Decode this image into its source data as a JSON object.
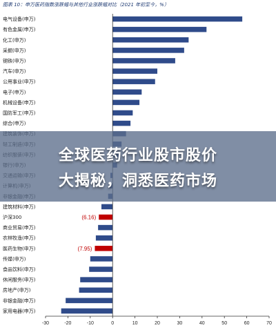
{
  "chart_data": {
    "type": "bar",
    "orientation": "horizontal",
    "title": "图表 10：申万医药指数涨跌幅与其他行业涨跌幅对比（2021 年初至今，%）",
    "categories": [
      "电气设备(申万)",
      "有色金属(申万)",
      "化工(申万)",
      "采掘(申万)",
      "钢铁(申万)",
      "汽车(申万)",
      "公用事业(申万)",
      "电子(申万)",
      "机械设备(申万)",
      "国防军工(申万)",
      "综合(申万)",
      "建筑装饰(申万)",
      "轻工制造(申万)",
      "纺织服装(申万)",
      "银行(申万)",
      "交通运输(申万)",
      "计算机(申万)",
      "非银金融(申万)",
      "建筑材料(申万)",
      "沪深300",
      "商业贸易(申万)",
      "农林牧渔(申万)",
      "医药生物(申万)",
      "传媒(申万)",
      "食品饮料(申万)",
      "休闲服务(申万)",
      "房地产(申万)",
      "非银金融(申万)",
      "家用电器(申万)"
    ],
    "values": [
      58,
      42,
      34,
      32,
      28,
      20,
      19,
      13,
      12,
      9,
      8,
      6,
      4,
      3,
      2,
      -1,
      -1.5,
      -2,
      -5,
      -6.16,
      -6.5,
      -7.5,
      -7.95,
      -10,
      -10.5,
      -14.5,
      -15,
      -21,
      -23
    ],
    "highlight": [
      {
        "category": "沪深300",
        "label": "(6.16)",
        "color": "#c00000"
      },
      {
        "category": "医药生物(申万)",
        "label": "(7.95)",
        "color": "#c00000"
      }
    ],
    "bar_color": "#2f4b8a",
    "xlim": [
      -30,
      70
    ],
    "xticks": [
      -30,
      -20,
      -10,
      0,
      10,
      20,
      30,
      40,
      50,
      60,
      70
    ],
    "grid": false
  },
  "banner": {
    "line1": "全球医药行业股市股价",
    "line2": "大揭秘，洞悉医药市场"
  }
}
